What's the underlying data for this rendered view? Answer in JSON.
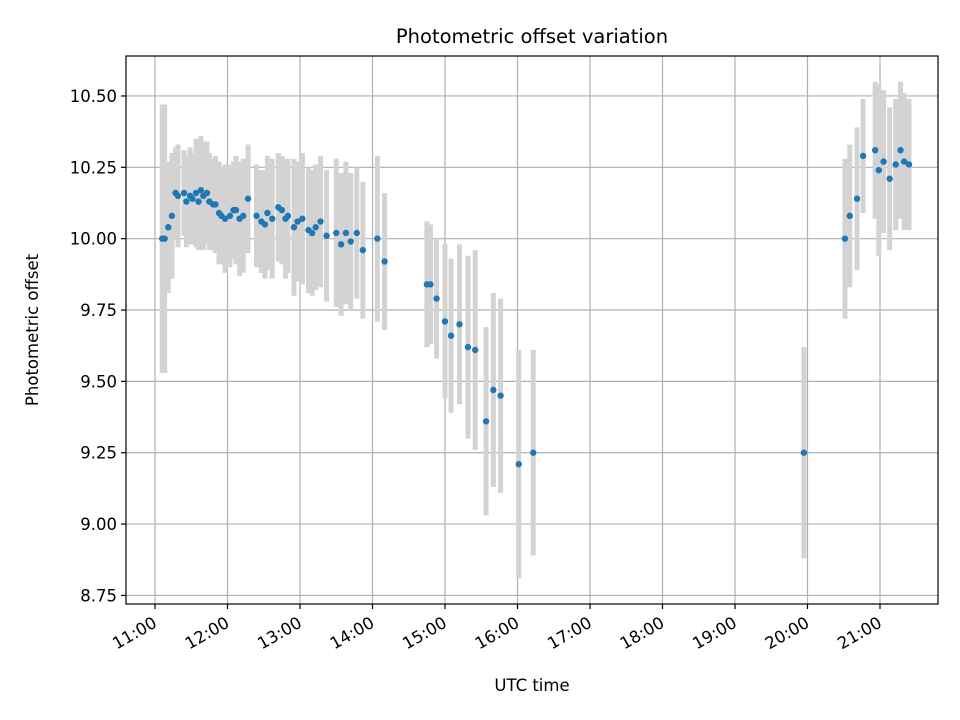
{
  "chart_data": {
    "type": "scatter",
    "title": "Photometric offset variation",
    "xlabel": "UTC time",
    "ylabel": "Photometric offset",
    "x_unit": "hours UTC",
    "xlim": [
      "10:36",
      "21:48"
    ],
    "ylim": [
      8.72,
      10.64
    ],
    "x_ticks": [
      "11:00",
      "12:00",
      "13:00",
      "14:00",
      "15:00",
      "16:00",
      "17:00",
      "18:00",
      "19:00",
      "20:00",
      "21:00"
    ],
    "y_ticks": [
      "8.75",
      "9.00",
      "9.25",
      "9.50",
      "9.75",
      "10.00",
      "10.25",
      "10.50"
    ],
    "grid": true,
    "marker_color": "#1f77b4",
    "errorbar_color": "#d3d3d3",
    "series": [
      {
        "x": [
          "11:06",
          "11:08",
          "11:11",
          "11:14",
          "11:17",
          "11:19",
          "11:24",
          "11:26",
          "11:29",
          "11:31",
          "11:34",
          "11:36",
          "11:38",
          "11:40",
          "11:43",
          "11:45",
          "11:48",
          "11:50",
          "11:53",
          "11:55",
          "11:58",
          "12:02",
          "12:05",
          "12:07",
          "12:10",
          "12:13",
          "12:17",
          "12:24",
          "12:28",
          "12:31",
          "12:33",
          "12:37",
          "12:42",
          "12:45",
          "12:48",
          "12:50",
          "12:55",
          "12:58",
          "13:02",
          "13:07",
          "13:10",
          "13:13",
          "13:17",
          "13:22",
          "13:30",
          "13:34",
          "13:38",
          "13:42",
          "13:47",
          "13:52",
          "14:04",
          "14:10",
          "14:45",
          "14:48",
          "14:53",
          "15:00",
          "15:05",
          "15:12",
          "15:19",
          "15:25",
          "15:34",
          "15:40",
          "15:46",
          "16:01",
          "16:13",
          "19:57",
          "20:31",
          "20:35",
          "20:41",
          "20:46",
          "20:56",
          "20:59",
          "21:03",
          "21:08",
          "21:13",
          "21:17",
          "21:20",
          "21:24"
        ],
        "y": [
          10.0,
          10.0,
          10.04,
          10.08,
          10.16,
          10.15,
          10.16,
          10.13,
          10.15,
          10.14,
          10.16,
          10.13,
          10.17,
          10.15,
          10.16,
          10.13,
          10.12,
          10.12,
          10.09,
          10.08,
          10.07,
          10.08,
          10.1,
          10.1,
          10.07,
          10.08,
          10.14,
          10.08,
          10.06,
          10.05,
          10.09,
          10.07,
          10.11,
          10.1,
          10.07,
          10.08,
          10.04,
          10.06,
          10.07,
          10.03,
          10.02,
          10.04,
          10.06,
          10.01,
          10.02,
          9.98,
          10.02,
          9.99,
          10.02,
          9.96,
          10.0,
          9.92,
          9.84,
          9.84,
          9.79,
          9.71,
          9.66,
          9.7,
          9.62,
          9.61,
          9.36,
          9.47,
          9.45,
          9.21,
          9.25,
          9.25,
          10.0,
          10.08,
          10.14,
          10.29,
          10.31,
          10.24,
          10.27,
          10.21,
          10.26,
          10.31,
          10.27,
          10.26
        ],
        "err": [
          0.47,
          0.47,
          0.23,
          0.22,
          0.16,
          0.18,
          0.15,
          0.16,
          0.17,
          0.16,
          0.19,
          0.17,
          0.19,
          0.19,
          0.18,
          0.17,
          0.16,
          0.17,
          0.18,
          0.17,
          0.19,
          0.18,
          0.17,
          0.19,
          0.2,
          0.2,
          0.19,
          0.18,
          0.18,
          0.19,
          0.2,
          0.21,
          0.19,
          0.19,
          0.21,
          0.2,
          0.24,
          0.21,
          0.23,
          0.22,
          0.22,
          0.22,
          0.23,
          0.23,
          0.26,
          0.25,
          0.25,
          0.24,
          0.23,
          0.24,
          0.29,
          0.24,
          0.22,
          0.21,
          0.21,
          0.27,
          0.27,
          0.28,
          0.32,
          0.35,
          0.33,
          0.34,
          0.34,
          0.4,
          0.36,
          0.37,
          0.28,
          0.25,
          0.25,
          0.2,
          0.24,
          0.3,
          0.25,
          0.25,
          0.23,
          0.24,
          0.24,
          0.23
        ]
      }
    ]
  }
}
